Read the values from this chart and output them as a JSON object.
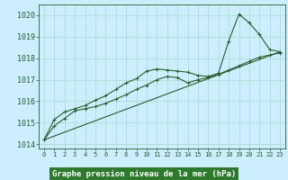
{
  "title": "Graphe pression niveau de la mer (hPa)",
  "background_color": "#cceeff",
  "grid_color": "#b0ddd0",
  "line_color": "#2a5c2a",
  "xlim": [
    -0.5,
    23.5
  ],
  "ylim": [
    1013.8,
    1020.5
  ],
  "yticks": [
    1014,
    1015,
    1016,
    1017,
    1018,
    1019,
    1020
  ],
  "xticks": [
    0,
    1,
    2,
    3,
    4,
    5,
    6,
    7,
    8,
    9,
    10,
    11,
    12,
    13,
    14,
    15,
    16,
    17,
    18,
    19,
    20,
    21,
    22,
    23
  ],
  "series1_x": [
    0,
    1,
    2,
    3,
    4,
    5,
    6,
    7,
    8,
    9,
    10,
    11,
    12,
    13,
    14,
    15,
    16,
    17,
    18,
    19,
    20,
    21,
    22,
    23
  ],
  "series1_y": [
    1014.2,
    1014.85,
    1015.2,
    1015.55,
    1015.65,
    1015.75,
    1015.9,
    1016.1,
    1016.3,
    1016.55,
    1016.75,
    1017.0,
    1017.15,
    1017.1,
    1016.85,
    1017.0,
    1017.1,
    1017.25,
    1017.45,
    1017.65,
    1017.85,
    1018.05,
    1018.15,
    1018.25
  ],
  "series2_x": [
    0,
    1,
    2,
    3,
    4,
    5,
    6,
    7,
    8,
    9,
    10,
    11,
    12,
    13,
    14,
    15,
    16,
    17,
    18,
    19,
    20,
    21,
    22,
    23
  ],
  "series2_y": [
    1014.2,
    1015.15,
    1015.5,
    1015.65,
    1015.8,
    1016.05,
    1016.25,
    1016.55,
    1016.85,
    1017.05,
    1017.4,
    1017.5,
    1017.45,
    1017.4,
    1017.35,
    1017.2,
    1017.15,
    1017.3,
    1018.8,
    1020.05,
    1019.65,
    1019.1,
    1018.4,
    1018.3
  ],
  "series3_x": [
    0,
    23
  ],
  "series3_y": [
    1014.2,
    1018.3
  ],
  "xlabel_bg": "#2d7a2d",
  "xlabel_fg": "#ffffff",
  "tick_fontsize": 5.5,
  "ylabel_fontsize": 6
}
